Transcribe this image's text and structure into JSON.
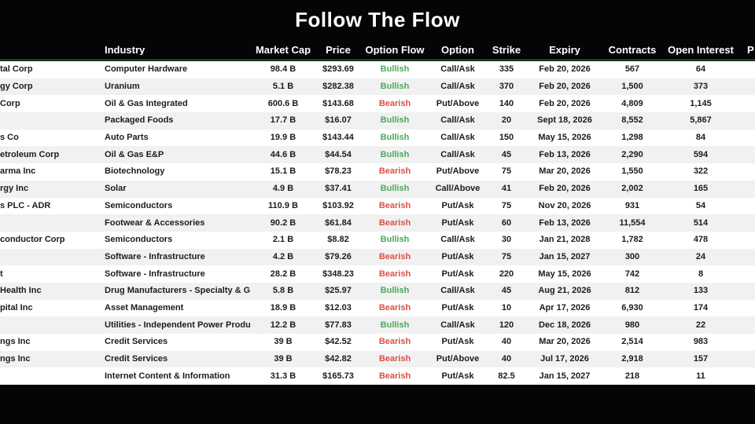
{
  "colors": {
    "background": "#050505",
    "header_text": "#ffffff",
    "header_divider": "#1d3b24",
    "row_odd": "#ffffff",
    "row_even": "#f1f1f1",
    "cell_text": "#1c1c1c",
    "bullish": "#4ca95a",
    "bearish": "#dd4f48"
  },
  "chart_data": {
    "type": "table",
    "title": "Follow The Flow",
    "columns": [
      {
        "key": "name",
        "label": ""
      },
      {
        "key": "industry",
        "label": "Industry"
      },
      {
        "key": "market_cap",
        "label": "Market Cap"
      },
      {
        "key": "price",
        "label": "Price"
      },
      {
        "key": "flow",
        "label": "Option Flow"
      },
      {
        "key": "option",
        "label": "Option"
      },
      {
        "key": "strike",
        "label": "Strike"
      },
      {
        "key": "expiry",
        "label": "Expiry"
      },
      {
        "key": "contracts",
        "label": "Contracts"
      },
      {
        "key": "open_interest",
        "label": "Open Interest"
      },
      {
        "key": "premium_partial",
        "label": "P"
      }
    ],
    "rows": [
      {
        "name": "tal Corp",
        "industry": "Computer Hardware",
        "market_cap": "98.4 B",
        "price": "$293.69",
        "flow": "Bullish",
        "option": "Call/Ask",
        "strike": "335",
        "expiry": "Feb 20, 2026",
        "contracts": "567",
        "open_interest": "64"
      },
      {
        "name": "gy Corp",
        "industry": "Uranium",
        "market_cap": "5.1 B",
        "price": "$282.38",
        "flow": "Bullish",
        "option": "Call/Ask",
        "strike": "370",
        "expiry": "Feb 20, 2026",
        "contracts": "1,500",
        "open_interest": "373"
      },
      {
        "name": "Corp",
        "industry": "Oil & Gas Integrated",
        "market_cap": "600.6 B",
        "price": "$143.68",
        "flow": "Bearish",
        "option": "Put/Above",
        "strike": "140",
        "expiry": "Feb 20, 2026",
        "contracts": "4,809",
        "open_interest": "1,145"
      },
      {
        "name": "",
        "industry": "Packaged Foods",
        "market_cap": "17.7 B",
        "price": "$16.07",
        "flow": "Bullish",
        "option": "Call/Ask",
        "strike": "20",
        "expiry": "Sept 18, 2026",
        "contracts": "8,552",
        "open_interest": "5,867"
      },
      {
        "name": "s Co",
        "industry": "Auto Parts",
        "market_cap": "19.9 B",
        "price": "$143.44",
        "flow": "Bullish",
        "option": "Call/Ask",
        "strike": "150",
        "expiry": "May 15, 2026",
        "contracts": "1,298",
        "open_interest": "84"
      },
      {
        "name": "etroleum Corp",
        "industry": "Oil & Gas E&P",
        "market_cap": "44.6 B",
        "price": "$44.54",
        "flow": "Bullish",
        "option": "Call/Ask",
        "strike": "45",
        "expiry": "Feb 13, 2026",
        "contracts": "2,290",
        "open_interest": "594"
      },
      {
        "name": "arma Inc",
        "industry": "Biotechnology",
        "market_cap": "15.1 B",
        "price": "$78.23",
        "flow": "Bearish",
        "option": "Put/Above",
        "strike": "75",
        "expiry": "Mar 20, 2026",
        "contracts": "1,550",
        "open_interest": "322"
      },
      {
        "name": "rgy Inc",
        "industry": "Solar",
        "market_cap": "4.9 B",
        "price": "$37.41",
        "flow": "Bullish",
        "option": "Call/Above",
        "strike": "41",
        "expiry": "Feb 20, 2026",
        "contracts": "2,002",
        "open_interest": "165"
      },
      {
        "name": "s PLC - ADR",
        "industry": "Semiconductors",
        "market_cap": "110.9 B",
        "price": "$103.92",
        "flow": "Bearish",
        "option": "Put/Ask",
        "strike": "75",
        "expiry": "Nov 20, 2026",
        "contracts": "931",
        "open_interest": "54"
      },
      {
        "name": "",
        "industry": "Footwear & Accessories",
        "market_cap": "90.2 B",
        "price": "$61.84",
        "flow": "Bearish",
        "option": "Put/Ask",
        "strike": "60",
        "expiry": "Feb 13, 2026",
        "contracts": "11,554",
        "open_interest": "514"
      },
      {
        "name": "conductor Corp",
        "industry": "Semiconductors",
        "market_cap": "2.1 B",
        "price": "$8.82",
        "flow": "Bullish",
        "option": "Call/Ask",
        "strike": "30",
        "expiry": "Jan 21, 2028",
        "contracts": "1,782",
        "open_interest": "478"
      },
      {
        "name": "",
        "industry": "Software - Infrastructure",
        "market_cap": "4.2 B",
        "price": "$79.26",
        "flow": "Bearish",
        "option": "Put/Ask",
        "strike": "75",
        "expiry": "Jan 15, 2027",
        "contracts": "300",
        "open_interest": "24"
      },
      {
        "name": "t",
        "industry": "Software - Infrastructure",
        "market_cap": "28.2 B",
        "price": "$348.23",
        "flow": "Bearish",
        "option": "Put/Ask",
        "strike": "220",
        "expiry": "May 15, 2026",
        "contracts": "742",
        "open_interest": "8"
      },
      {
        "name": "Health Inc",
        "industry": "Drug Manufacturers - Specialty & Gene",
        "market_cap": "5.8 B",
        "price": "$25.97",
        "flow": "Bullish",
        "option": "Call/Ask",
        "strike": "45",
        "expiry": "Aug 21, 2026",
        "contracts": "812",
        "open_interest": "133"
      },
      {
        "name": "pital Inc",
        "industry": "Asset Management",
        "market_cap": "18.9 B",
        "price": "$12.03",
        "flow": "Bearish",
        "option": "Put/Ask",
        "strike": "10",
        "expiry": "Apr 17, 2026",
        "contracts": "6,930",
        "open_interest": "174"
      },
      {
        "name": "",
        "industry": "Utilities - Independent Power Produce",
        "market_cap": "12.2 B",
        "price": "$77.83",
        "flow": "Bullish",
        "option": "Call/Ask",
        "strike": "120",
        "expiry": "Dec 18, 2026",
        "contracts": "980",
        "open_interest": "22"
      },
      {
        "name": "ngs Inc",
        "industry": "Credit Services",
        "market_cap": "39 B",
        "price": "$42.52",
        "flow": "Bearish",
        "option": "Put/Ask",
        "strike": "40",
        "expiry": "Mar 20, 2026",
        "contracts": "2,514",
        "open_interest": "983"
      },
      {
        "name": "ngs Inc",
        "industry": "Credit Services",
        "market_cap": "39 B",
        "price": "$42.82",
        "flow": "Bearish",
        "option": "Put/Above",
        "strike": "40",
        "expiry": "Jul 17, 2026",
        "contracts": "2,918",
        "open_interest": "157"
      },
      {
        "name": "",
        "industry": "Internet Content & Information",
        "market_cap": "31.3 B",
        "price": "$165.73",
        "flow": "Bearish",
        "option": "Put/Ask",
        "strike": "82.5",
        "expiry": "Jan 15, 2027",
        "contracts": "218",
        "open_interest": "11"
      }
    ]
  }
}
